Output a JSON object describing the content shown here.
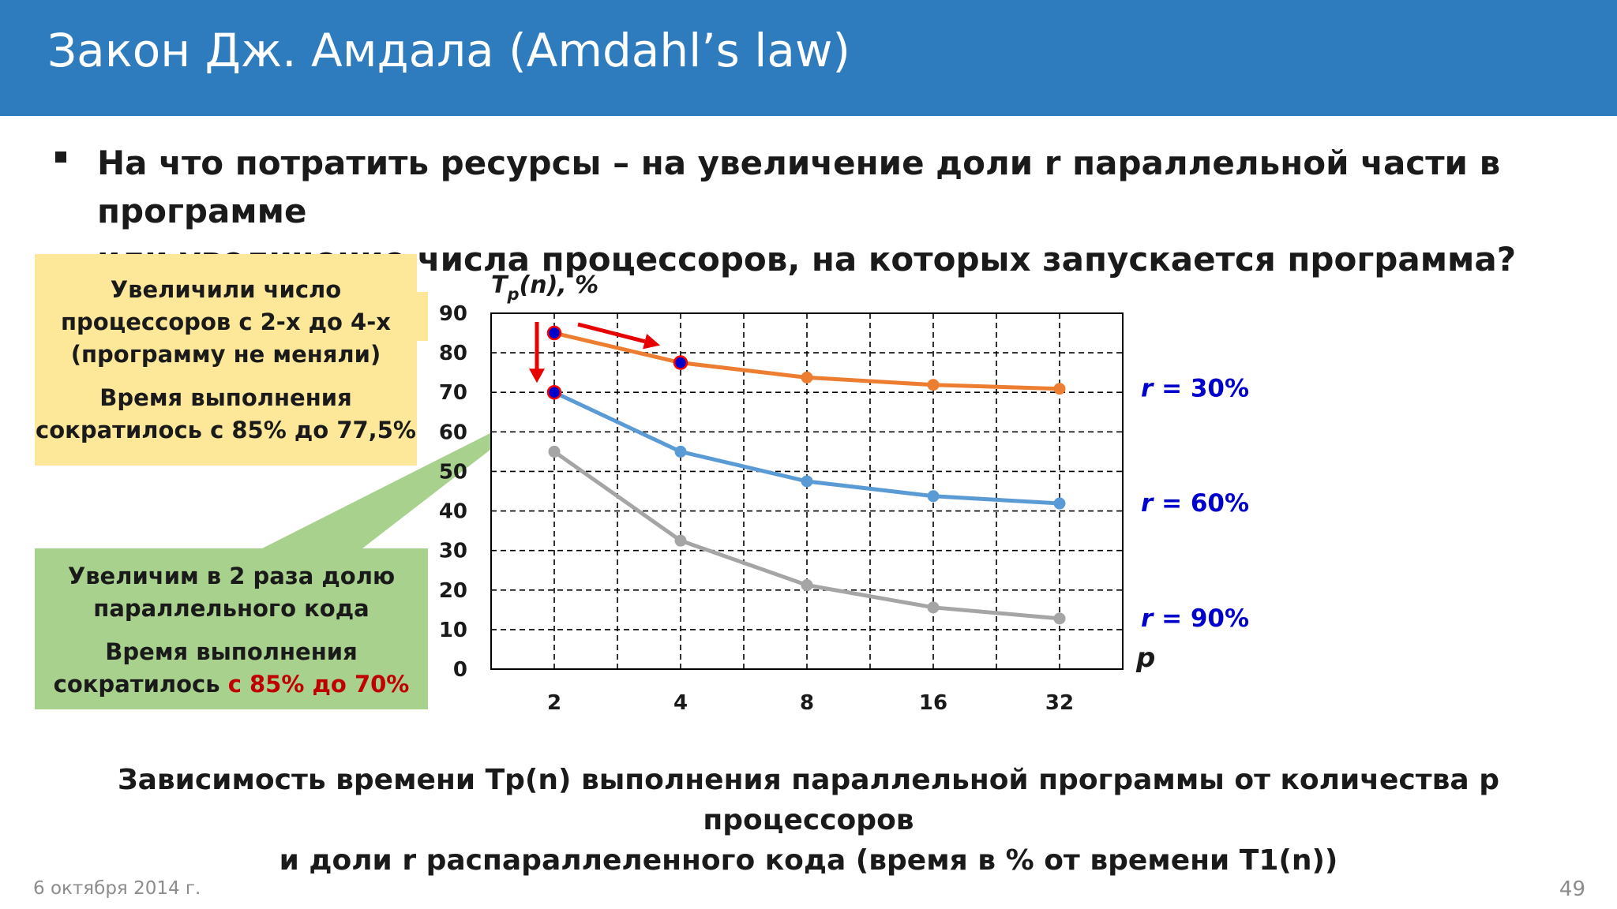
{
  "slide": {
    "title": "Закон Дж. Амдала (Amdahl’s law)",
    "question_line1": "На что потратить ресурсы – на увеличение доли r параллельной части в программе",
    "question_line2": "или увеличение числа процессоров, на которых запускается программа?",
    "date": "6 октября 2014 г.",
    "page_number": "49"
  },
  "notes": {
    "yellow_text1": "Увеличили число процессоров с 2-х до 4-х (программу не меняли)",
    "yellow_text2": "Время выполнения сократилось с 85% до 77,5%",
    "green_text1": "Увеличим в 2 раза долю параллельного кода",
    "green_text2_prefix": "Время выполнения сократилось",
    "green_text2_highlight": "с 85% до 70%"
  },
  "caption": {
    "line1": "Зависимость времени Tp(n) выполнения параллельной программы от количества p процессоров",
    "line2": "и доли r распараллеленного кода (время в % от времени T1(n))"
  },
  "chart_data": {
    "type": "line",
    "ylabel": "Tp(n), %",
    "xlabel": "p",
    "categories": [
      "2",
      "4",
      "8",
      "16",
      "32"
    ],
    "ylim": [
      0,
      90
    ],
    "yticks": [
      0,
      10,
      20,
      30,
      40,
      50,
      60,
      70,
      80,
      90
    ],
    "grid": true,
    "series": [
      {
        "name": "r = 30%",
        "color": "#ed7d31",
        "values": [
          85,
          77.5,
          73.75,
          71.9,
          70.9
        ]
      },
      {
        "name": "r = 60%",
        "color": "#5b9bd5",
        "values": [
          70,
          55,
          47.5,
          43.75,
          41.9
        ]
      },
      {
        "name": "r = 90%",
        "color": "#a5a5a5",
        "values": [
          55,
          32.5,
          21.25,
          15.6,
          12.8
        ]
      }
    ],
    "highlighted_points": [
      {
        "series": "r = 30%",
        "category": "2"
      },
      {
        "series": "r = 30%",
        "category": "4"
      },
      {
        "series": "r = 60%",
        "category": "2"
      }
    ],
    "label_color": "#0000cc",
    "arrow_color": "#e60000"
  }
}
